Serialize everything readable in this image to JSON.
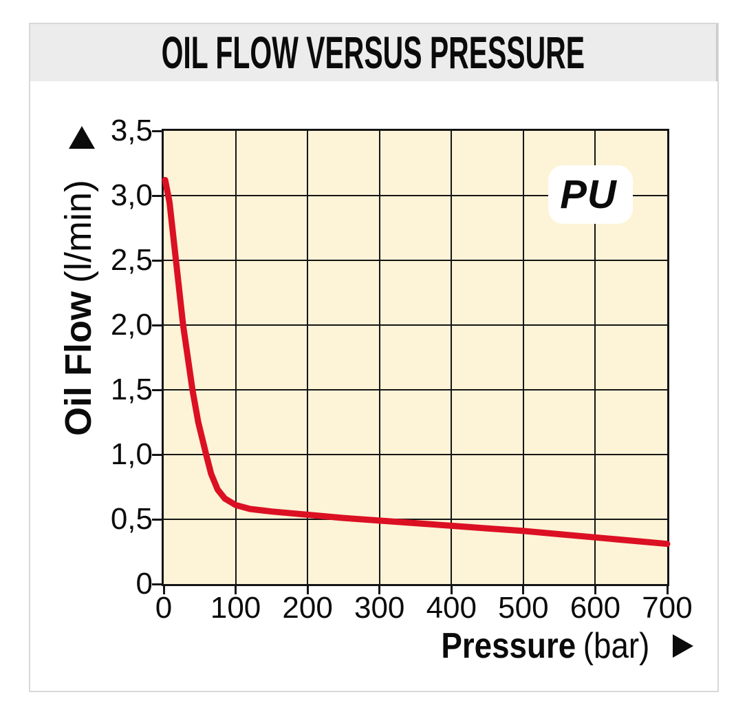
{
  "title_bar": {
    "title": "OIL FLOW VERSUS PRESSURE"
  },
  "badge": {
    "label": "PU"
  },
  "y_axis": {
    "label_bold": "Oil Flow",
    "label_unit": "(l/min)",
    "tick_labels": [
      "0",
      "0,5",
      "1,0",
      "1,5",
      "2,0",
      "2,5",
      "3,0",
      "3,5"
    ],
    "arrow_icon": "up-arrow"
  },
  "x_axis": {
    "label_bold": "Pressure",
    "label_unit": "(bar)",
    "tick_labels": [
      "0",
      "100",
      "200",
      "300",
      "400",
      "500",
      "600",
      "700"
    ],
    "arrow_icon": "right-arrow"
  },
  "colors": {
    "curve_red": "#DB1023",
    "plot_background": "#FDF3D7",
    "grid_black": "#141414",
    "title_bar_background": "#ECECEC",
    "frame_border": "#D8D8D8",
    "badge_background": "#FFFFFF"
  },
  "chart_data": {
    "type": "line",
    "title": "OIL FLOW VERSUS PRESSURE",
    "xlabel": "Pressure (bar)",
    "ylabel": "Oil Flow (l/min)",
    "xlim": [
      0,
      700
    ],
    "ylim": [
      0,
      3.5
    ],
    "x_ticks": [
      0,
      100,
      200,
      300,
      400,
      500,
      600,
      700
    ],
    "y_ticks": [
      0,
      0.5,
      1.0,
      1.5,
      2.0,
      2.5,
      3.0,
      3.5
    ],
    "grid": true,
    "legend_badge": "PU",
    "series": [
      {
        "name": "PU",
        "color": "#DB1023",
        "points": [
          [
            2,
            3.12
          ],
          [
            8,
            2.95
          ],
          [
            17,
            2.5
          ],
          [
            27,
            2.0
          ],
          [
            40,
            1.5
          ],
          [
            48,
            1.25
          ],
          [
            59,
            1.0
          ],
          [
            66,
            0.85
          ],
          [
            75,
            0.73
          ],
          [
            85,
            0.66
          ],
          [
            100,
            0.61
          ],
          [
            120,
            0.58
          ],
          [
            150,
            0.56
          ],
          [
            200,
            0.535
          ],
          [
            250,
            0.51
          ],
          [
            300,
            0.49
          ],
          [
            350,
            0.47
          ],
          [
            400,
            0.45
          ],
          [
            450,
            0.43
          ],
          [
            500,
            0.41
          ],
          [
            550,
            0.385
          ],
          [
            600,
            0.36
          ],
          [
            650,
            0.335
          ],
          [
            700,
            0.31
          ]
        ]
      }
    ]
  }
}
